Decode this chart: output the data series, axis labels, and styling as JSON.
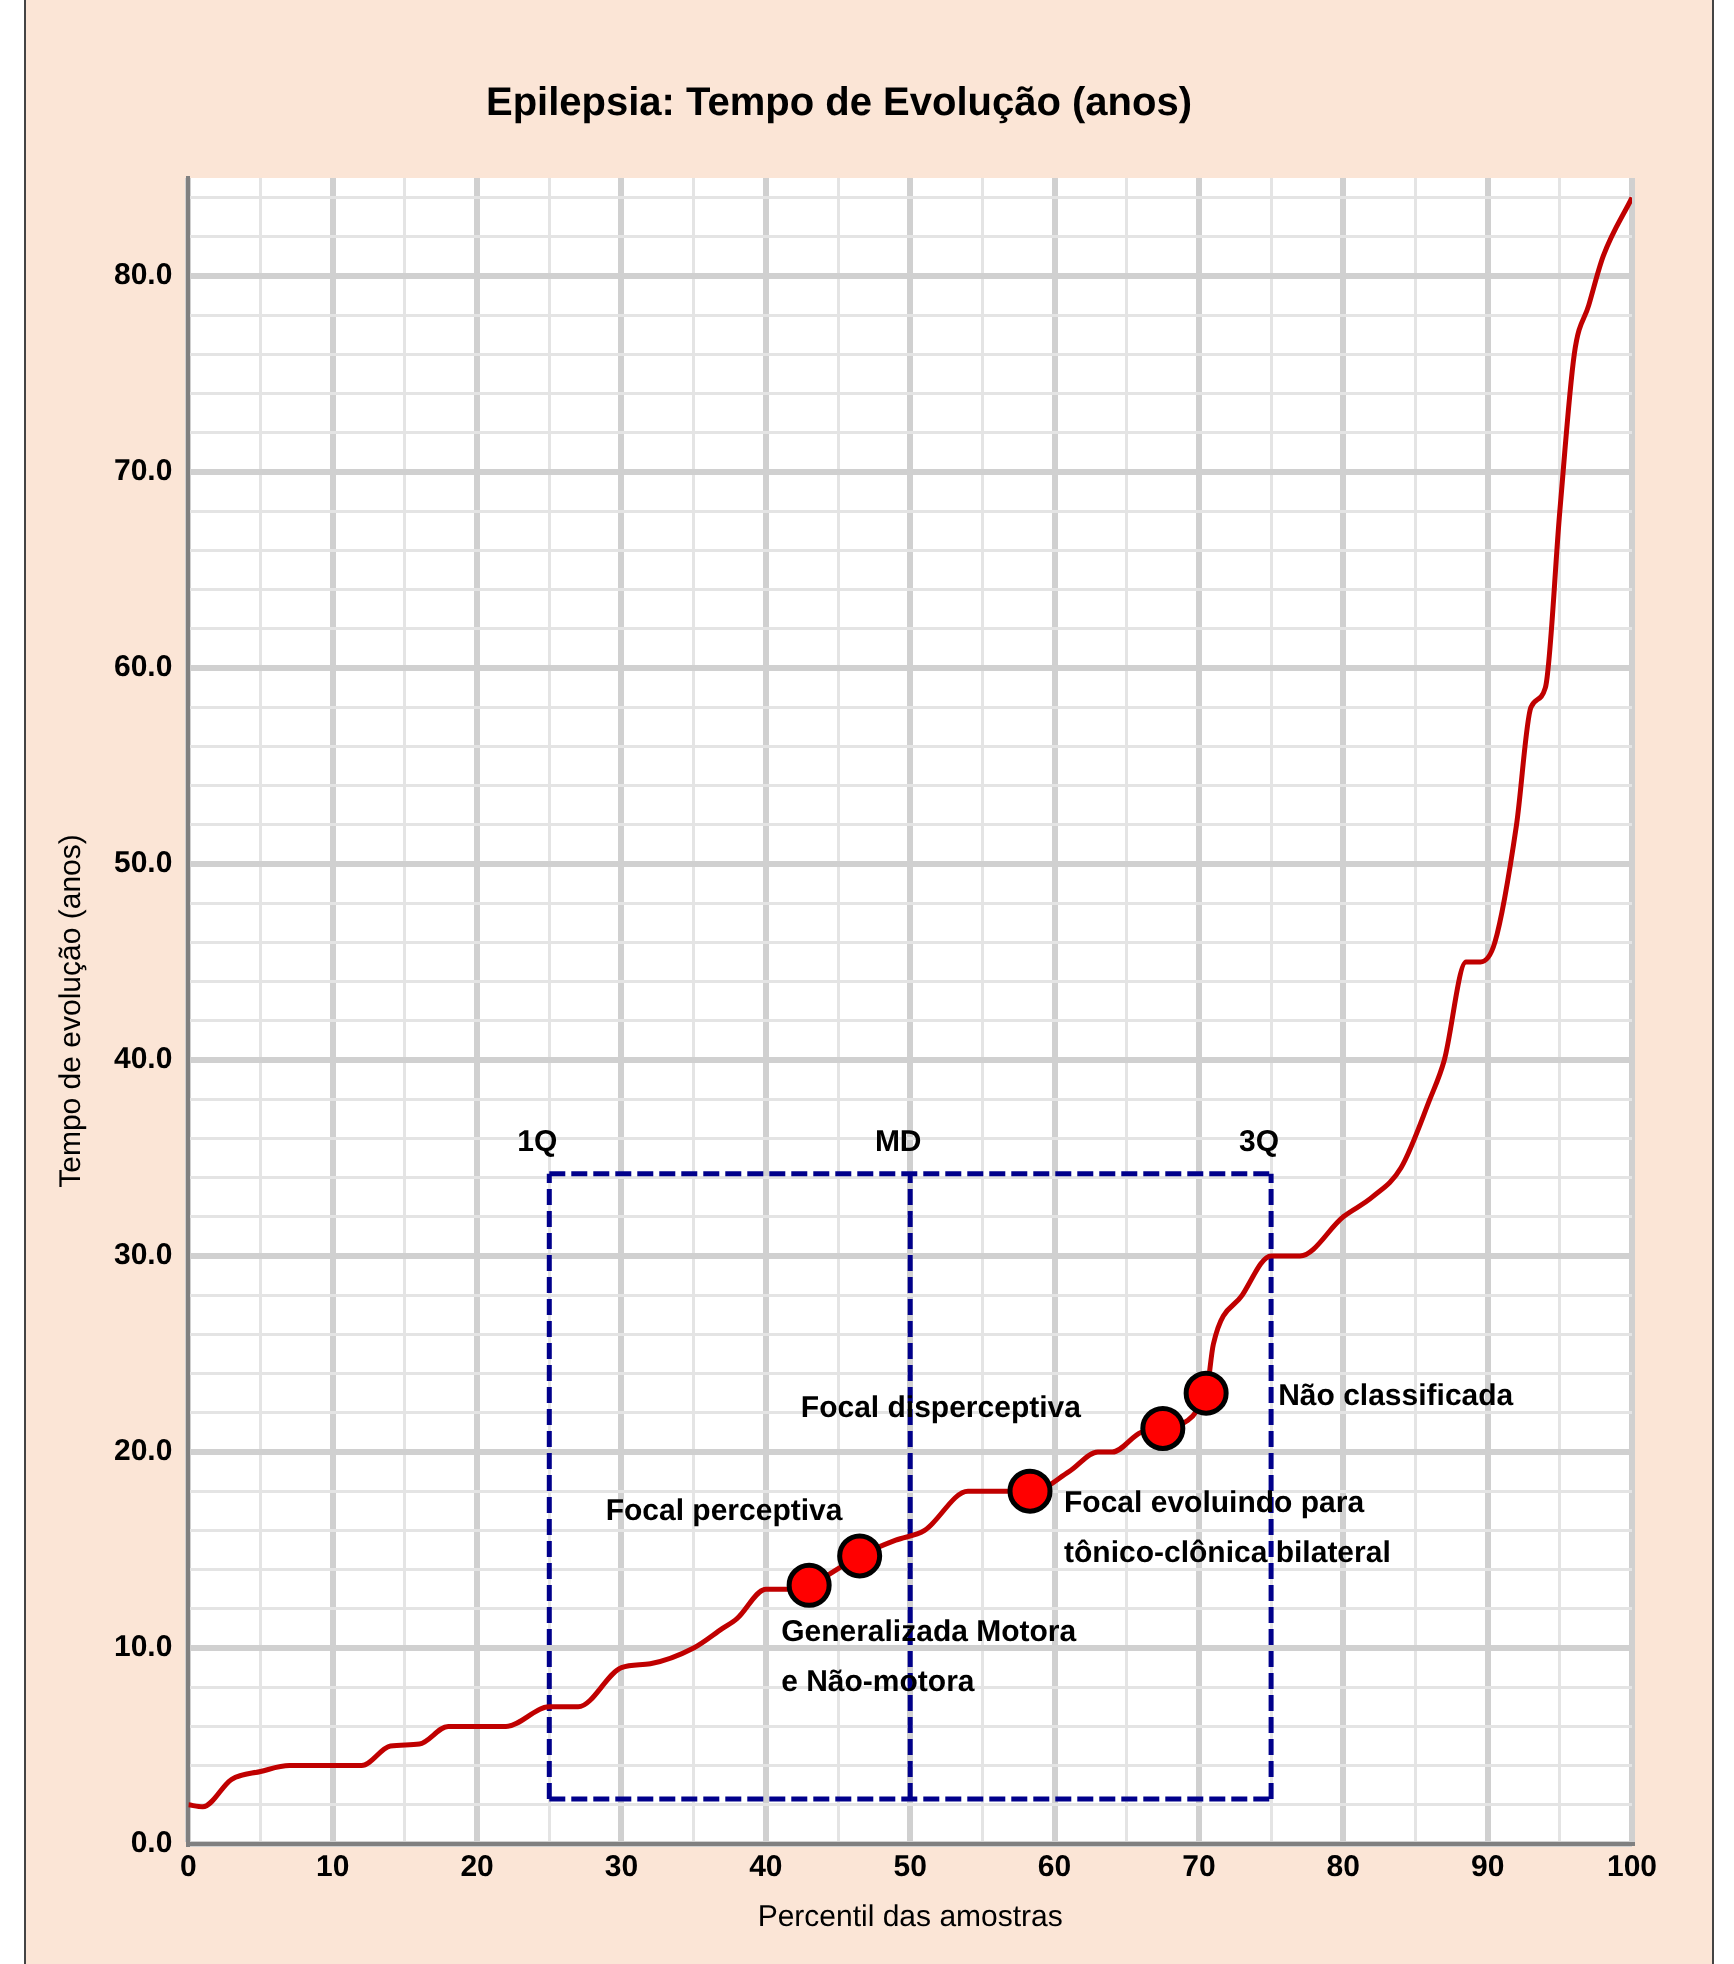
{
  "chart_data": {
    "type": "line",
    "title": "Epilepsia: Tempo de Evolução (anos)",
    "xlabel": "Percentil das amostras",
    "ylabel": "Tempo de evolução (anos)",
    "xlim": [
      0,
      100
    ],
    "ylim": [
      0,
      85
    ],
    "xticks": [
      0,
      {
        "value": 5,
        "label": null
      },
      10,
      {
        "value": 15,
        "label": null
      },
      20,
      {
        "value": 25,
        "label": null
      },
      30,
      {
        "value": 35,
        "label": null
      },
      40,
      {
        "value": 45,
        "label": null
      },
      50,
      {
        "value": 55,
        "label": null
      },
      60,
      {
        "value": 65,
        "label": null
      },
      70,
      {
        "value": 75,
        "label": null
      },
      80,
      {
        "value": 85,
        "label": null
      },
      90,
      {
        "value": 95,
        "label": null
      },
      100
    ],
    "yticks": [
      {
        "value": 0,
        "label": "0.0"
      },
      {
        "value": 2,
        "label": null
      },
      {
        "value": 4,
        "label": null
      },
      {
        "value": 6,
        "label": null
      },
      {
        "value": 8,
        "label": null
      },
      {
        "value": 10,
        "label": "10.0"
      },
      {
        "value": 12,
        "label": null
      },
      {
        "value": 14,
        "label": null
      },
      {
        "value": 16,
        "label": null
      },
      {
        "value": 18,
        "label": null
      },
      {
        "value": 20,
        "label": "20.0"
      },
      {
        "value": 22,
        "label": null
      },
      {
        "value": 24,
        "label": null
      },
      {
        "value": 26,
        "label": null
      },
      {
        "value": 28,
        "label": null
      },
      {
        "value": 30,
        "label": "30.0"
      },
      {
        "value": 32,
        "label": null
      },
      {
        "value": 34,
        "label": null
      },
      {
        "value": 36,
        "label": null
      },
      {
        "value": 38,
        "label": null
      },
      {
        "value": 40,
        "label": "40.0"
      },
      {
        "value": 42,
        "label": null
      },
      {
        "value": 44,
        "label": null
      },
      {
        "value": 46,
        "label": null
      },
      {
        "value": 48,
        "label": null
      },
      {
        "value": 50,
        "label": "50.0"
      },
      {
        "value": 52,
        "label": null
      },
      {
        "value": 54,
        "label": null
      },
      {
        "value": 56,
        "label": null
      },
      {
        "value": 58,
        "label": null
      },
      {
        "value": 60,
        "label": "60.0"
      },
      {
        "value": 62,
        "label": null
      },
      {
        "value": 64,
        "label": null
      },
      {
        "value": 66,
        "label": null
      },
      {
        "value": 68,
        "label": null
      },
      {
        "value": 70,
        "label": "70.0"
      },
      {
        "value": 72,
        "label": null
      },
      {
        "value": 74,
        "label": null
      },
      {
        "value": 76,
        "label": null
      },
      {
        "value": 78,
        "label": null
      },
      {
        "value": 80,
        "label": "80.0"
      },
      {
        "value": 82,
        "label": null
      },
      {
        "value": 84,
        "label": null
      }
    ],
    "grid": true,
    "legend": false,
    "series": [
      {
        "color": "#c00000",
        "marker": "none",
        "line_style": "solid",
        "x": [
          0,
          1,
          3,
          5,
          7,
          12,
          14,
          16,
          18,
          22,
          25,
          27,
          30,
          32,
          35,
          37,
          38,
          40,
          42,
          43,
          46.5,
          49,
          51,
          54,
          58.5,
          61,
          63,
          64,
          66,
          67.5,
          70.5,
          71,
          73,
          75,
          77,
          80,
          82,
          84,
          86,
          87,
          88.5,
          89.5,
          90.5,
          92,
          93,
          94,
          95,
          96,
          97,
          98,
          100
        ],
        "values": [
          2,
          1.9,
          3.3,
          3.7,
          4,
          4,
          5,
          5.1,
          6,
          6,
          7,
          7,
          9,
          9.2,
          10,
          11,
          11.5,
          13,
          13,
          13.2,
          14.7,
          15.5,
          16,
          18,
          18,
          19,
          20,
          20,
          21,
          21.2,
          23,
          25.5,
          28,
          30,
          30,
          32,
          33,
          34.5,
          38,
          40,
          45,
          45,
          46,
          52,
          58,
          59,
          68,
          76,
          78.5,
          81,
          84
        ]
      },
      {
        "type": "scatter",
        "color": "#ff0000",
        "marker": "circle",
        "x": [
          43,
          46.5,
          58.3,
          67.5,
          70.5
        ],
        "values": [
          13.2,
          14.7,
          18,
          21.2,
          23
        ]
      }
    ],
    "ref_lines": [
      {
        "axis": "x",
        "value": 25,
        "label": "1Q",
        "color": "#00008b",
        "line_style": "dashed"
      },
      {
        "axis": "x",
        "value": 50,
        "label": "MD",
        "color": "#00008b",
        "line_style": "dashed"
      },
      {
        "axis": "x",
        "value": 75,
        "label": "3Q",
        "color": "#00008b",
        "line_style": "dashed"
      },
      {
        "axis": "y",
        "value": 2.3,
        "color": "#00008b",
        "line_style": "dashed"
      },
      {
        "axis": "y",
        "value": 34.2,
        "color": "#00008b",
        "line_style": "dashed"
      }
    ],
    "annotations": [
      {
        "text": "Focal perceptiva",
        "x": 46.5,
        "y": 14.7
      },
      {
        "text": "Generalizada Motora\ne Não-motora",
        "x": 43,
        "y": 13.2
      },
      {
        "text": "Focal disperceptiva",
        "x": 67.5,
        "y": 21.2
      },
      {
        "text": "Focal evoluindo para\ntônico-clônica bilateral",
        "x": 58.3,
        "y": 18
      },
      {
        "text": "Não classificada",
        "x": 70.5,
        "y": 23
      }
    ]
  }
}
